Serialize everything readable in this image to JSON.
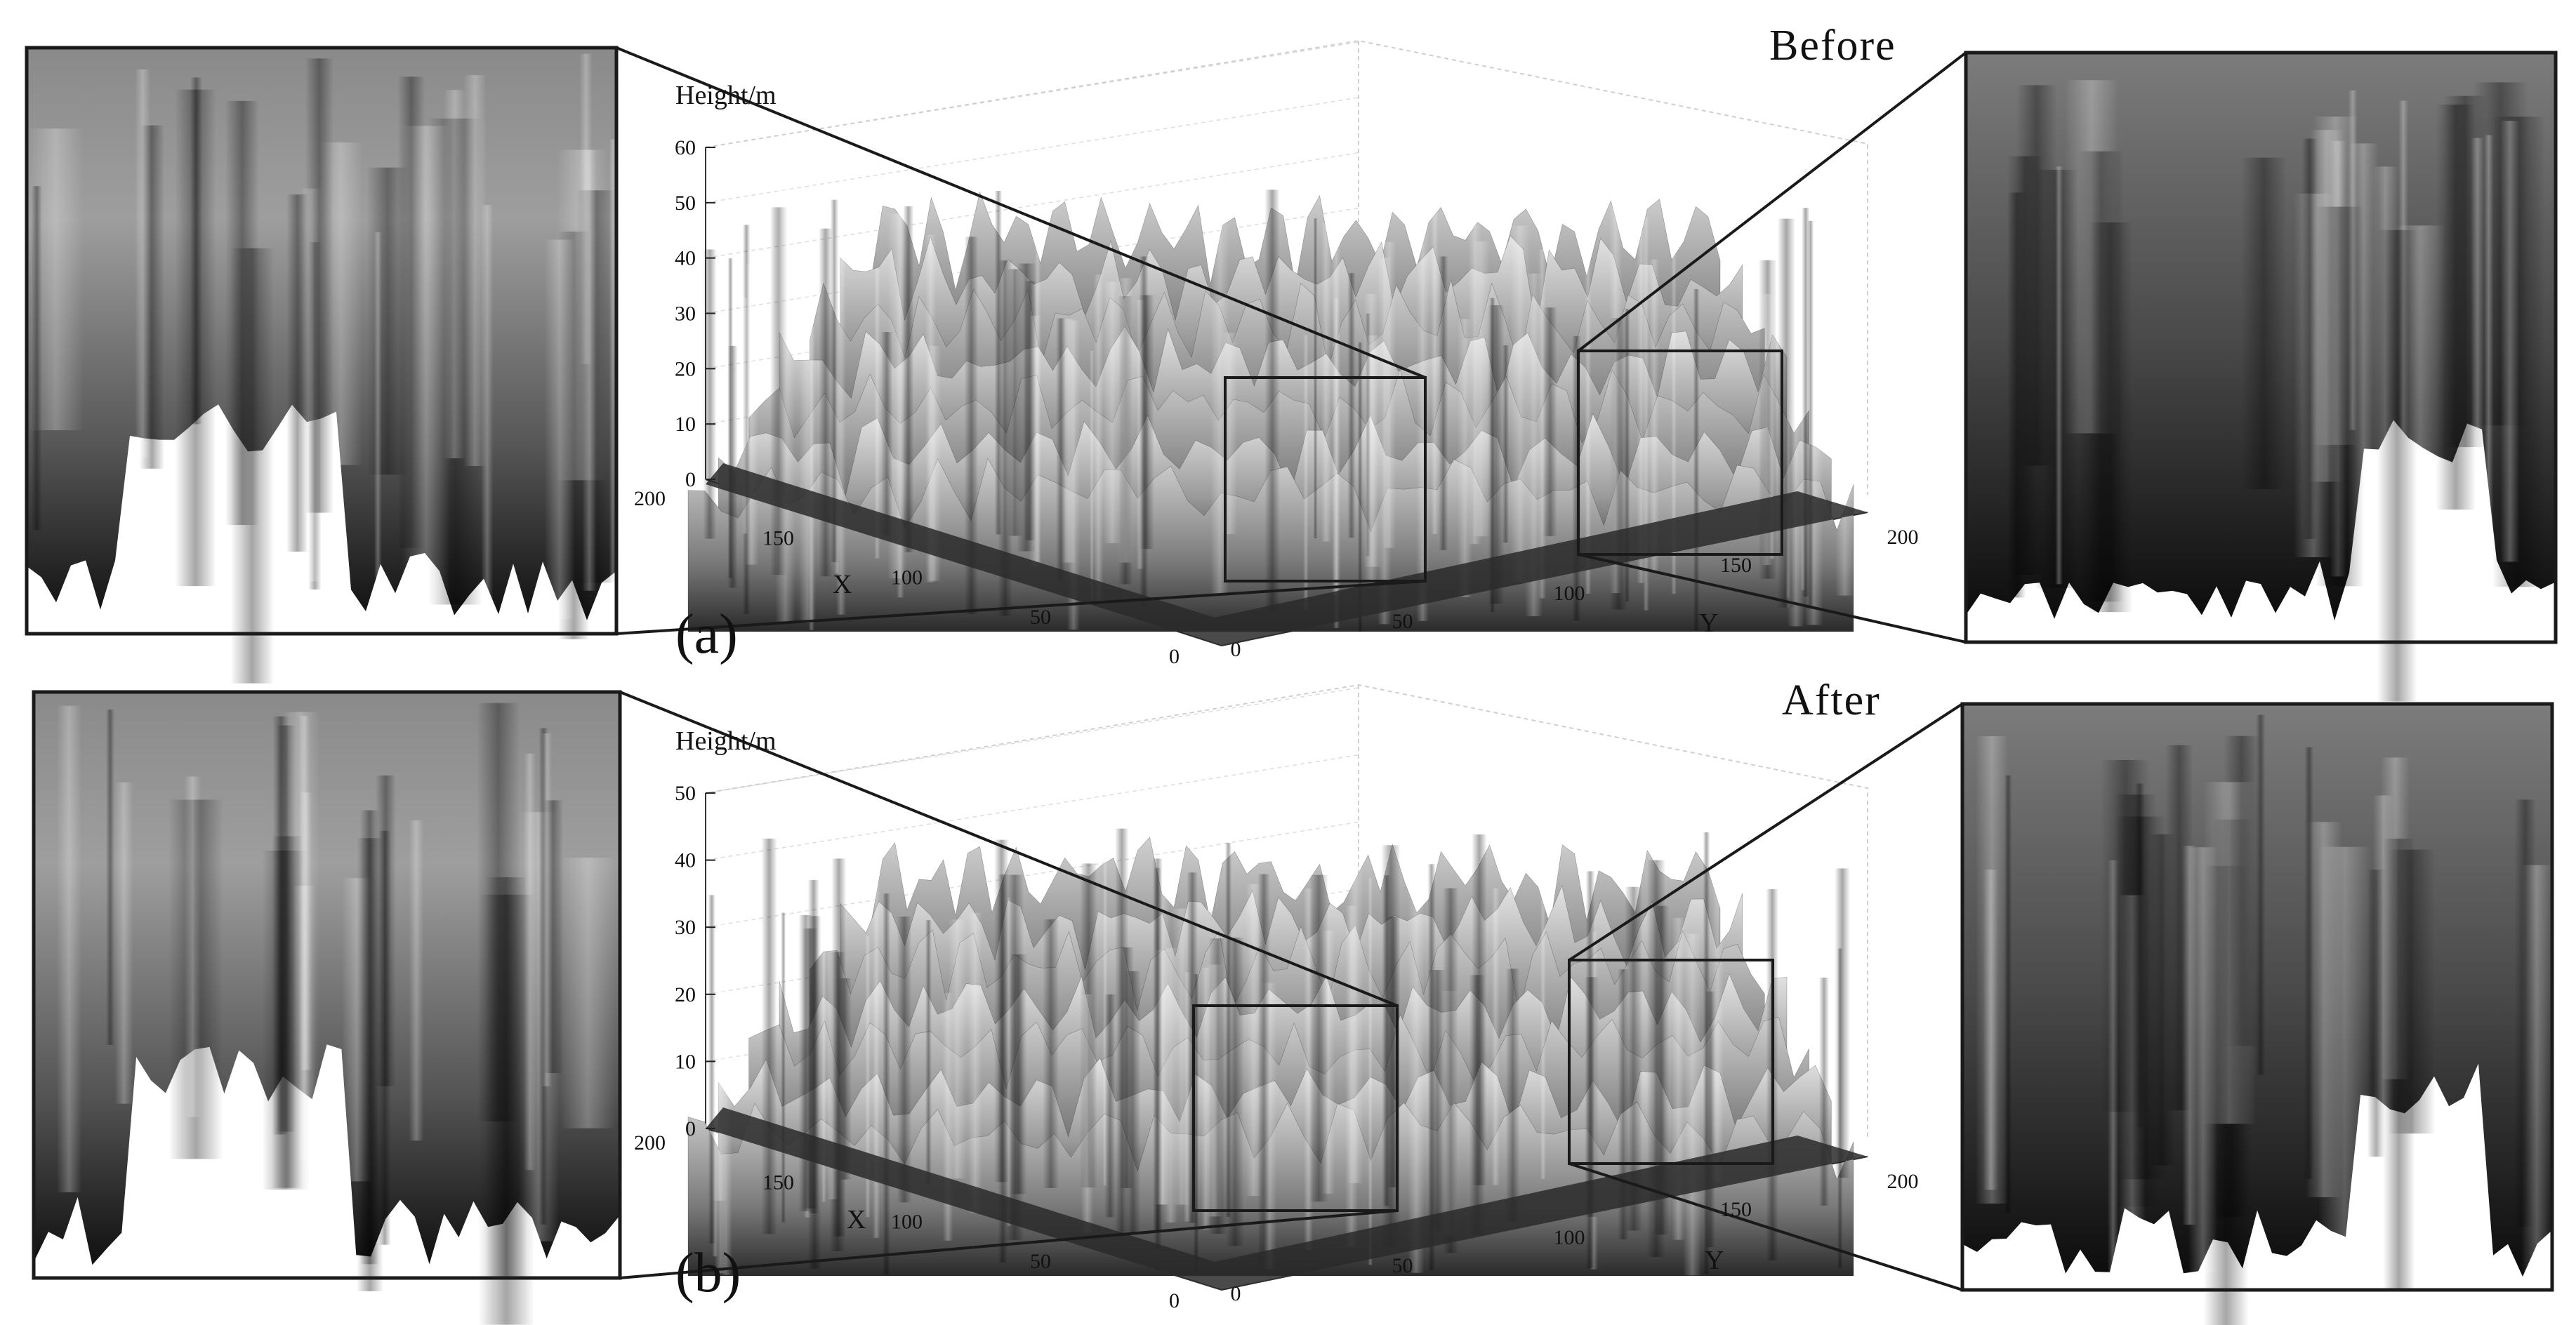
{
  "chart_data": [
    {
      "type": "surface3d",
      "panel_label": "(a)",
      "state_label": "Before",
      "zlabel": "Height/m",
      "xlabel": "X",
      "ylabel": "Y",
      "x_ticks": [
        0,
        50,
        100,
        150,
        200
      ],
      "y_ticks": [
        0,
        50,
        100,
        150,
        200
      ],
      "z_ticks": [
        0,
        10,
        20,
        30,
        40,
        50,
        60
      ],
      "xlim": [
        0,
        200
      ],
      "ylim": [
        0,
        200
      ],
      "zlim": [
        0,
        60
      ],
      "grid": true,
      "colormap": "gray",
      "zoom_insets": 2
    },
    {
      "type": "surface3d",
      "panel_label": "(b)",
      "state_label": "After",
      "zlabel": "Height/m",
      "xlabel": "X",
      "ylabel": "Y",
      "x_ticks": [
        0,
        50,
        100,
        150,
        200
      ],
      "y_ticks": [
        0,
        50,
        100,
        150,
        200
      ],
      "z_ticks": [
        0,
        10,
        20,
        30,
        40,
        50
      ],
      "xlim": [
        0,
        200
      ],
      "ylim": [
        0,
        200
      ],
      "zlim": [
        0,
        50
      ],
      "grid": true,
      "colormap": "gray",
      "zoom_insets": 2
    }
  ],
  "colors": {
    "surface_dark": "#141414",
    "surface_mid": "#6e6e6e",
    "surface_light": "#e2e2e2",
    "frame": "#1a1a1a",
    "grid": "#cfcfcf"
  }
}
